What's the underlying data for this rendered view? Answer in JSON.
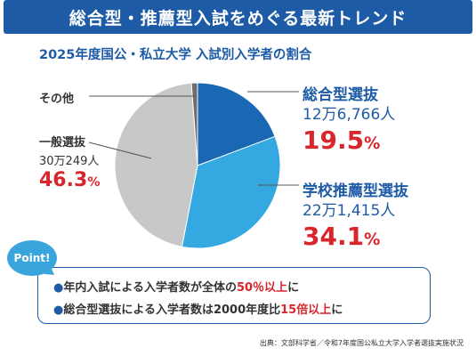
{
  "header": {
    "title": "総合型・推薦型入試をめぐる最新トレンド",
    "subtitle": "2025年度国公・私立大学 入試別入学者の割合"
  },
  "chart_data": {
    "type": "pie",
    "title": "2025年度国公・私立大学 入試別入学者の割合",
    "slices": [
      {
        "name": "総合型選抜",
        "count": "12万6,766人",
        "percent": 19.5,
        "percent_label": "19.5",
        "color": "#1a67b3"
      },
      {
        "name": "学校推薦型選抜",
        "count": "22万1,415人",
        "percent": 34.1,
        "percent_label": "34.1",
        "color": "#34a8e0"
      },
      {
        "name": "一般選抜",
        "count": "30万249人",
        "percent": 46.3,
        "percent_label": "46.3",
        "color": "#c8c8c8"
      },
      {
        "name": "その他",
        "count": "",
        "percent": 1.2,
        "percent_label": "",
        "color": "#6e6e6e"
      }
    ],
    "percent_unit": "%"
  },
  "point": {
    "badge": "Point!",
    "bullet": "●",
    "line1_a": "年内入試による入学者数が全体の",
    "line1_hl": "50％以上",
    "line1_b": "に",
    "line2_a": "総合型選抜による入学者数は2000年度比",
    "line2_hl": "15倍以上",
    "line2_b": "に"
  },
  "source": "出典：文部科学省／令和7年度国公私立大学入学者選抜実施状況"
}
